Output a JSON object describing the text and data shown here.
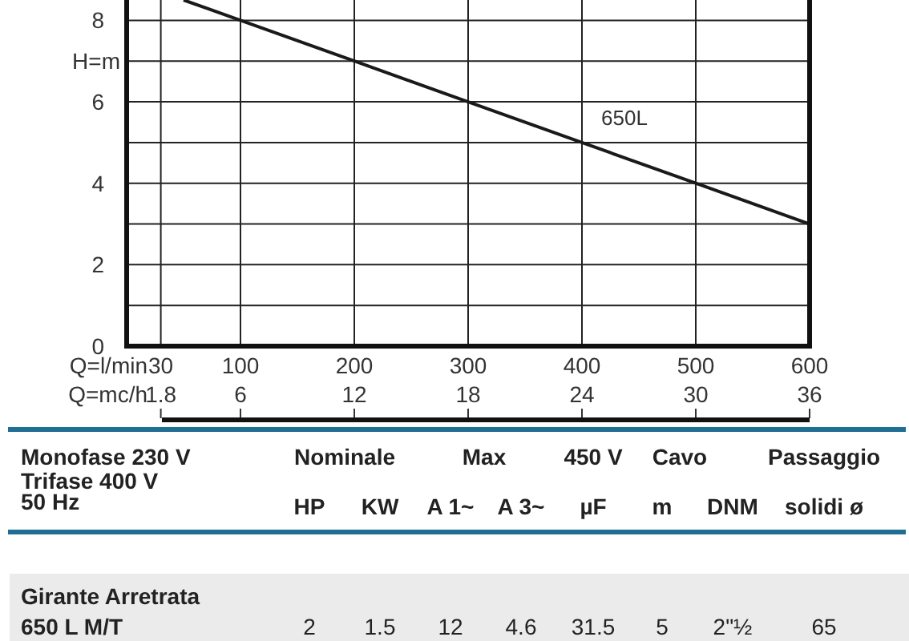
{
  "chart_data": {
    "type": "line",
    "xlabel": "Q=l/min",
    "x2label": "Q=mc/h",
    "ylabel": "H=m",
    "x": [
      50,
      100,
      200,
      300,
      400,
      500,
      600
    ],
    "series": [
      {
        "name": "650L",
        "color": "#1a1a1a",
        "values": [
          8.5,
          8,
          7,
          6,
          5,
          4,
          3
        ]
      }
    ],
    "xlim": [
      0,
      600
    ],
    "xticks": [
      30,
      100,
      200,
      300,
      400,
      500,
      600
    ],
    "x2lim": [
      0,
      36
    ],
    "x2ticks": [
      1.8,
      6,
      12,
      18,
      24,
      30,
      36
    ],
    "ylim": [
      0,
      8.5
    ],
    "yticks": [
      0,
      {
        "value": 1,
        "label": null
      },
      2,
      {
        "value": 3,
        "label": null
      },
      4,
      {
        "value": 5,
        "label": null
      },
      6,
      {
        "value": 7,
        "label": null
      },
      8
    ],
    "grid": true,
    "marker": "none",
    "line_style": "solid",
    "annotations": [
      "Monofase 230 V",
      "Trifase 400 V",
      "50 Hz",
      "Nominale",
      "Max",
      "450 V",
      "Cavo",
      "Passaggio",
      "HP",
      "KW",
      "A 1~",
      "A 3~",
      "µF",
      "m",
      "DNM",
      "solidi ø",
      "Girante Arretrata",
      "650 L M/T",
      "2",
      "1.5",
      "12",
      "4.6",
      "31.5",
      "5",
      "2\"½",
      "65"
    ]
  }
}
